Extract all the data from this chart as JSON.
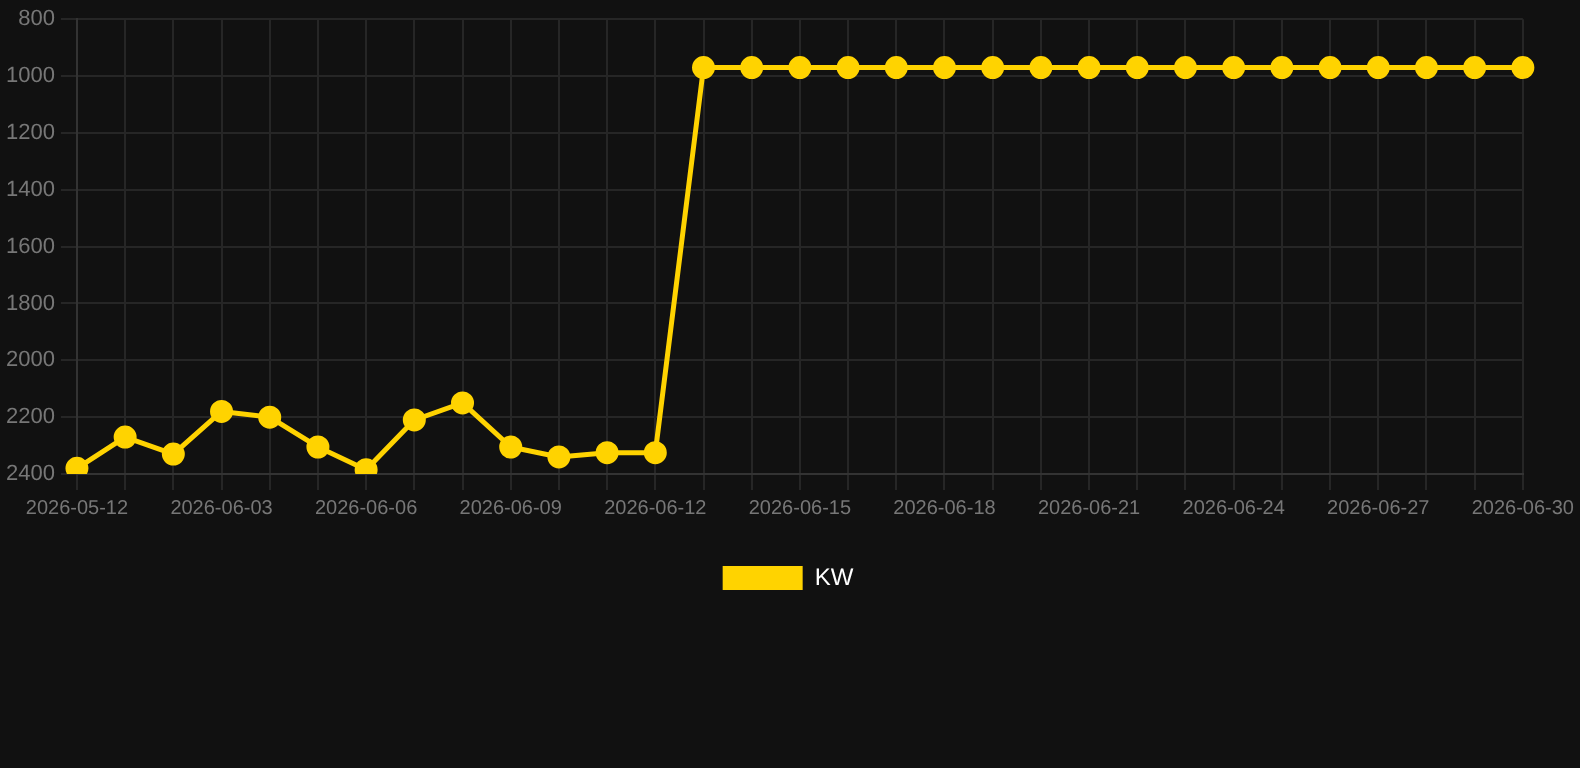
{
  "chart_data": {
    "type": "line",
    "categories": [
      "2026-05-12",
      null,
      null,
      "2026-06-03",
      null,
      null,
      "2026-06-06",
      null,
      null,
      "2026-06-09",
      null,
      null,
      "2026-06-12",
      null,
      null,
      "2026-06-15",
      null,
      null,
      "2026-06-18",
      null,
      null,
      "2026-06-21",
      null,
      null,
      "2026-06-24",
      null,
      null,
      "2026-06-27",
      null,
      null,
      "2026-06-30"
    ],
    "series": [
      {
        "name": "KW",
        "color": "#ffd300",
        "values": [
          2380,
          2270,
          2330,
          2180,
          2200,
          2305,
          2385,
          2210,
          2150,
          2305,
          2340,
          2325,
          2325,
          970,
          970,
          970,
          970,
          970,
          970,
          970,
          970,
          970,
          970,
          970,
          970,
          970,
          970,
          970,
          970,
          970,
          970
        ]
      }
    ],
    "ylim": [
      2400,
      800
    ],
    "yticks": [
      800,
      1000,
      1200,
      1400,
      1600,
      1800,
      2000,
      2200,
      2400
    ],
    "grid": true,
    "legend": "bottom",
    "marker": "circle",
    "line_style": "solid"
  }
}
